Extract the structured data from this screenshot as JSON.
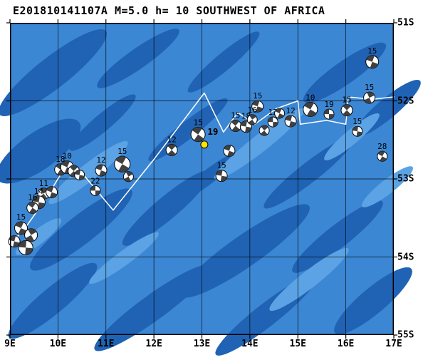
{
  "title": "E201810141107A M=5.0 h= 10 SOUTHWEST OF AFRICA",
  "map": {
    "lon_min": 9,
    "lon_max": 17,
    "lat_min": 51,
    "lat_max": 55,
    "lon_labels": [
      {
        "value": 9,
        "label": "9E"
      },
      {
        "value": 10,
        "label": "10E"
      },
      {
        "value": 11,
        "label": "11E"
      },
      {
        "value": 12,
        "label": "12E"
      },
      {
        "value": 13,
        "label": "13E"
      },
      {
        "value": 14,
        "label": "14E"
      },
      {
        "value": 15,
        "label": "15E"
      },
      {
        "value": 16,
        "label": "16E"
      },
      {
        "value": 17,
        "label": "17E"
      }
    ],
    "lat_labels": [
      {
        "value": 51,
        "label": "51S"
      },
      {
        "value": 52,
        "label": "52S"
      },
      {
        "value": 53,
        "label": "53S"
      },
      {
        "value": 54,
        "label": "54S"
      },
      {
        "value": 55,
        "label": "55S"
      }
    ],
    "grid_lons": [
      10,
      11,
      12,
      13,
      14,
      15,
      16
    ],
    "grid_lats": [
      52,
      53,
      54
    ]
  },
  "colors": {
    "ocean": "#3c87d4",
    "ocean_dark": "#2063b4",
    "ocean_light": "#5ba3e4",
    "boundary": "#ffffff",
    "event": "#ffe400",
    "beachball": "#404040"
  },
  "plate_boundary": [
    [
      9.0,
      53.85
    ],
    [
      9.35,
      53.6
    ],
    [
      9.75,
      53.25
    ],
    [
      10.05,
      52.95
    ],
    [
      10.4,
      52.85
    ],
    [
      11.15,
      53.4
    ],
    [
      12.0,
      52.75
    ],
    [
      13.05,
      51.9
    ],
    [
      13.45,
      52.4
    ],
    [
      13.75,
      52.15
    ],
    [
      14.1,
      52.3
    ],
    [
      14.55,
      52.1
    ],
    [
      15.0,
      52.0
    ],
    [
      15.05,
      52.3
    ],
    [
      15.6,
      52.25
    ],
    [
      16.0,
      52.3
    ],
    [
      16.05,
      51.95
    ],
    [
      16.55,
      51.98
    ],
    [
      17.0,
      51.95
    ]
  ],
  "event_marker": {
    "lon": 13.05,
    "lat": 52.56,
    "label": "19"
  },
  "beachballs": [
    {
      "lon": 16.55,
      "lat": 51.5,
      "label": "15",
      "r": 9,
      "rot": 20
    },
    {
      "lon": 16.49,
      "lat": 51.96,
      "label": "15",
      "r": 8,
      "rot": 65
    },
    {
      "lon": 15.26,
      "lat": 52.11,
      "label": "10",
      "r": 10,
      "rot": 30
    },
    {
      "lon": 14.85,
      "lat": 52.26,
      "label": "12",
      "r": 8,
      "rot": 15
    },
    {
      "lon": 15.65,
      "lat": 52.17,
      "label": "19",
      "r": 7,
      "rot": 0
    },
    {
      "lon": 16.02,
      "lat": 52.12,
      "label": "15",
      "r": 8,
      "rot": 45
    },
    {
      "lon": 16.24,
      "lat": 52.39,
      "label": "15",
      "r": 7,
      "rot": 10
    },
    {
      "lon": 16.76,
      "lat": 52.71,
      "label": "28",
      "r": 7,
      "rot": 30
    },
    {
      "lon": 14.16,
      "lat": 52.07,
      "label": "15",
      "r": 8,
      "rot": 20
    },
    {
      "lon": 13.7,
      "lat": 52.32,
      "label": "15",
      "r": 8,
      "rot": 40
    },
    {
      "lon": 13.92,
      "lat": 52.33,
      "label": "18",
      "r": 8,
      "rot": 10
    },
    {
      "lon": 14.05,
      "lat": 52.24,
      "label": "16",
      "r": 7,
      "rot": 55
    },
    {
      "lon": 14.48,
      "lat": 52.27,
      "label": "12",
      "r": 7,
      "rot": 0
    },
    {
      "lon": 14.3,
      "lat": 52.38,
      "label": "",
      "r": 7,
      "rot": 50
    },
    {
      "lon": 14.62,
      "lat": 52.16,
      "label": "",
      "r": 7,
      "rot": 25
    },
    {
      "lon": 12.92,
      "lat": 52.43,
      "label": "15",
      "r": 10,
      "rot": 35
    },
    {
      "lon": 13.57,
      "lat": 52.64,
      "label": "",
      "r": 8,
      "rot": 20
    },
    {
      "lon": 13.41,
      "lat": 52.96,
      "label": "15",
      "r": 8,
      "rot": 10
    },
    {
      "lon": 12.37,
      "lat": 52.63,
      "label": "12",
      "r": 8,
      "rot": 45
    },
    {
      "lon": 11.34,
      "lat": 52.81,
      "label": "15",
      "r": 11,
      "rot": 30
    },
    {
      "lon": 11.47,
      "lat": 52.97,
      "label": "",
      "r": 7,
      "rot": 60
    },
    {
      "lon": 10.9,
      "lat": 52.89,
      "label": "12",
      "r": 8,
      "rot": 20
    },
    {
      "lon": 10.78,
      "lat": 53.15,
      "label": "22",
      "r": 7,
      "rot": 0
    },
    {
      "lon": 10.05,
      "lat": 52.88,
      "label": "18",
      "r": 8,
      "rot": 35
    },
    {
      "lon": 10.19,
      "lat": 52.85,
      "label": "10",
      "r": 9,
      "rot": 25
    },
    {
      "lon": 10.33,
      "lat": 52.9,
      "label": "",
      "r": 8,
      "rot": 45
    },
    {
      "lon": 10.45,
      "lat": 52.95,
      "label": "",
      "r": 7,
      "rot": 10
    },
    {
      "lon": 9.7,
      "lat": 53.19,
      "label": "11",
      "r": 8,
      "rot": 50
    },
    {
      "lon": 9.87,
      "lat": 53.17,
      "label": "",
      "r": 8,
      "rot": 20
    },
    {
      "lon": 9.6,
      "lat": 53.3,
      "label": "14",
      "r": 9,
      "rot": 10
    },
    {
      "lon": 9.47,
      "lat": 53.37,
      "label": "16",
      "r": 8,
      "rot": 35
    },
    {
      "lon": 9.23,
      "lat": 53.63,
      "label": "15",
      "r": 9,
      "rot": 25
    },
    {
      "lon": 9.44,
      "lat": 53.72,
      "label": "",
      "r": 9,
      "rot": 60
    },
    {
      "lon": 9.09,
      "lat": 53.8,
      "label": "",
      "r": 8,
      "rot": 15
    },
    {
      "lon": 9.33,
      "lat": 53.88,
      "label": "",
      "r": 10,
      "rot": 5
    }
  ]
}
